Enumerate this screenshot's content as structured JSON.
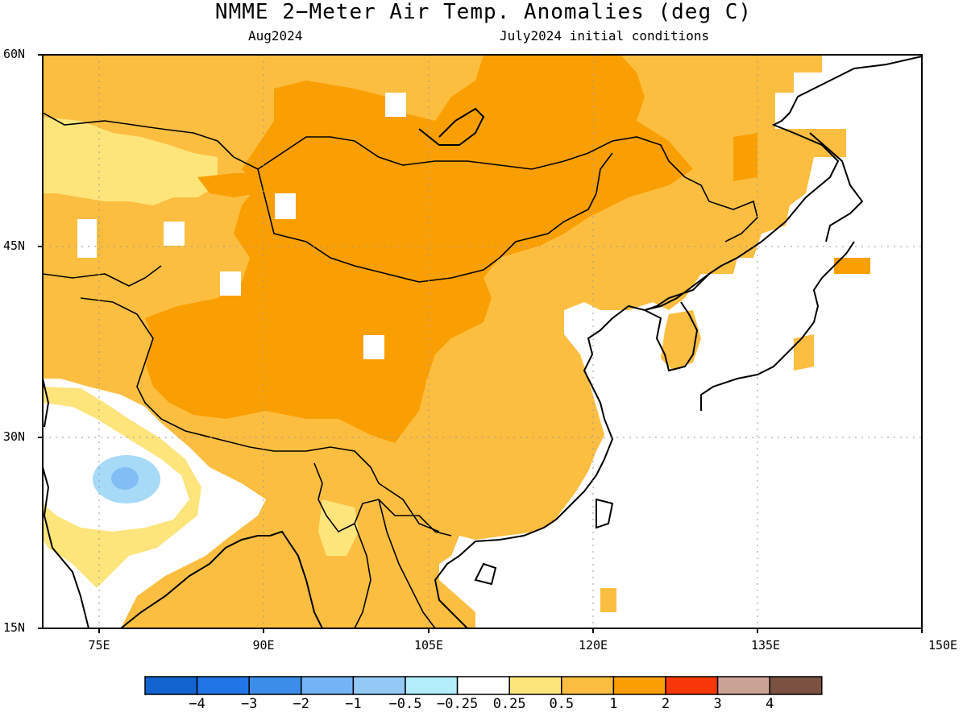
{
  "title": "NMME 2−Meter Air Temp. Anomalies (deg C)",
  "subtitle_left": "Aug2024",
  "subtitle_right": "July2024 initial conditions",
  "map": {
    "lon_range": [
      70,
      150
    ],
    "lat_range": [
      15,
      60
    ],
    "lat_labels": [
      "60N",
      "45N",
      "30N",
      "15N"
    ],
    "lon_labels": [
      "75E",
      "90E",
      "105E",
      "120E",
      "135E",
      "150E"
    ],
    "grid": "dotted gray",
    "colors": {
      "land_0.5_1": "#fcbe41",
      "land_1_2": "#fa9f03",
      "land_0.25_0.5": "#fde57c",
      "ocean_white": "#ffffff",
      "neg_0.5_1": "#a7daf7",
      "neg_1_2": "#82bdf5"
    }
  },
  "legend": {
    "colors": [
      "#1364d1",
      "#2175e6",
      "#3b8de9",
      "#74b4f4",
      "#94c9f6",
      "#b3edfa",
      "#ffffff",
      "#fde57c",
      "#fcbe41",
      "#fa9f03",
      "#f83808",
      "#cba395",
      "#7b5141"
    ],
    "labels": [
      "−4",
      "−3",
      "−2",
      "−1",
      "−0.5",
      "−0.25",
      "0.25",
      "0.5",
      "1",
      "2",
      "3",
      "4"
    ]
  }
}
